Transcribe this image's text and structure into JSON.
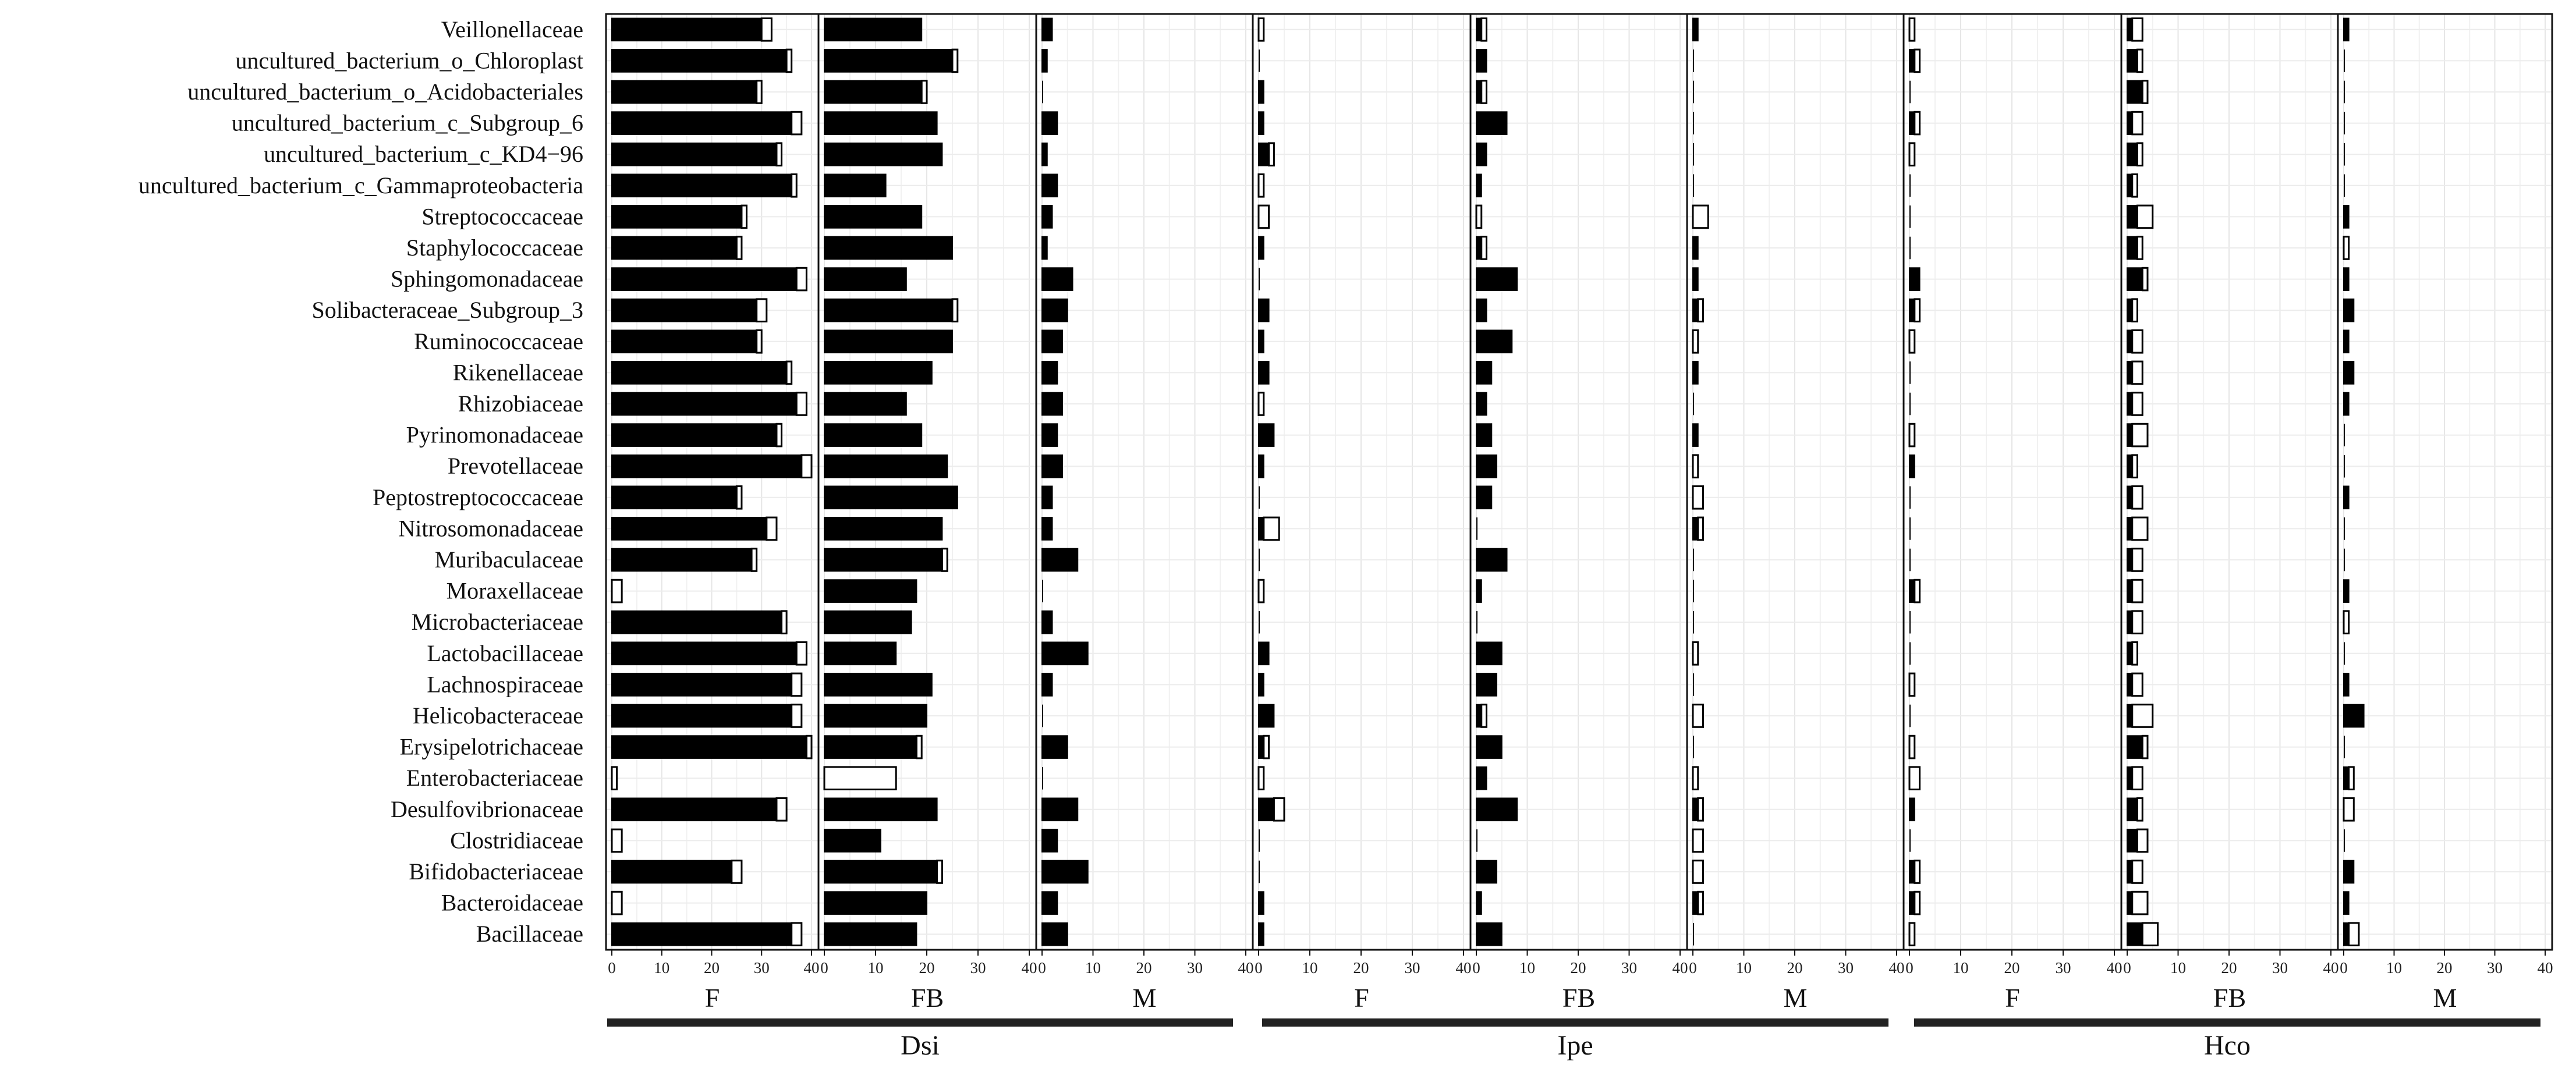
{
  "chart_data": {
    "type": "bar",
    "orientation": "horizontal",
    "stacked": true,
    "xlim": [
      0,
      40
    ],
    "x_ticks": [
      0,
      10,
      20,
      30,
      40
    ],
    "grid": true,
    "groups": [
      "Dsi",
      "Ipe",
      "Hco"
    ],
    "facets": [
      "F",
      "FB",
      "M"
    ],
    "series_colors": {
      "solid": "#000000",
      "open": "#ffffff"
    },
    "categories": [
      "Veillonellaceae",
      "uncultured_bacterium_o_Chloroplast",
      "uncultured_bacterium_o_Acidobacteriales",
      "uncultured_bacterium_c_Subgroup_6",
      "uncultured_bacterium_c_KD4−96",
      "uncultured_bacterium_c_Gammaproteobacteria",
      "Streptococcaceae",
      "Staphylococcaceae",
      "Sphingomonadaceae",
      "Solibacteraceae_Subgroup_3",
      "Ruminococcaceae",
      "Rikenellaceae",
      "Rhizobiaceae",
      "Pyrinomonadaceae",
      "Prevotellaceae",
      "Peptostreptococcaceae",
      "Nitrosomonadaceae",
      "Muribaculaceae",
      "Moraxellaceae",
      "Microbacteriaceae",
      "Lactobacillaceae",
      "Lachnospiraceae",
      "Helicobacteraceae",
      "Erysipelotrichaceae",
      "Enterobacteriaceae",
      "Desulfovibrionaceae",
      "Clostridiaceae",
      "Bifidobacteriaceae",
      "Bacteroidaceae",
      "Bacillaceae"
    ],
    "panels": [
      {
        "group": "Dsi",
        "facet": "F",
        "solid": [
          30,
          35,
          29,
          36,
          33,
          36,
          26,
          25,
          37,
          29,
          29,
          35,
          37,
          33,
          38,
          25,
          31,
          28,
          0,
          34,
          37,
          36,
          36,
          39,
          0,
          33,
          0,
          24,
          0,
          36
        ],
        "open": [
          2,
          1,
          1,
          2,
          1,
          1,
          1,
          1,
          2,
          2,
          1,
          1,
          2,
          1,
          2,
          1,
          2,
          1,
          2,
          1,
          2,
          2,
          2,
          1,
          1,
          2,
          2,
          2,
          2,
          2
        ]
      },
      {
        "group": "Dsi",
        "facet": "FB",
        "solid": [
          19,
          25,
          19,
          22,
          23,
          12,
          19,
          25,
          16,
          25,
          25,
          21,
          16,
          19,
          24,
          26,
          23,
          23,
          18,
          17,
          14,
          21,
          20,
          18,
          0,
          22,
          11,
          22,
          20,
          18
        ],
        "open": [
          0,
          1,
          1,
          0,
          0,
          0,
          0,
          0,
          0,
          1,
          0,
          0,
          0,
          0,
          0,
          0,
          0,
          1,
          0,
          0,
          0,
          0,
          0,
          1,
          14,
          0,
          0,
          1,
          0,
          0
        ]
      },
      {
        "group": "Dsi",
        "facet": "M",
        "solid": [
          2,
          1,
          0,
          3,
          1,
          3,
          2,
          1,
          6,
          5,
          4,
          3,
          4,
          3,
          4,
          2,
          2,
          7,
          0,
          2,
          9,
          2,
          0,
          5,
          0,
          7,
          3,
          9,
          3,
          5
        ],
        "open": [
          0,
          0,
          0,
          0,
          0,
          0,
          0,
          0,
          0,
          0,
          0,
          0,
          0,
          0,
          0,
          0,
          0,
          0,
          0,
          0,
          0,
          0,
          0,
          0,
          0,
          0,
          0,
          0,
          0,
          0
        ]
      },
      {
        "group": "Ipe",
        "facet": "F",
        "solid": [
          0,
          0,
          1,
          1,
          2,
          0,
          0,
          1,
          0,
          2,
          1,
          2,
          0,
          3,
          1,
          0,
          1,
          0,
          0,
          0,
          2,
          1,
          3,
          1,
          0,
          3,
          0,
          0,
          1,
          1
        ],
        "open": [
          1,
          0,
          0,
          0,
          1,
          1,
          2,
          0,
          0,
          0,
          0,
          0,
          1,
          0,
          0,
          0,
          3,
          0,
          1,
          0,
          0,
          0,
          0,
          1,
          1,
          2,
          0,
          0,
          0,
          0
        ]
      },
      {
        "group": "Ipe",
        "facet": "FB",
        "solid": [
          1,
          2,
          1,
          6,
          2,
          1,
          0,
          1,
          8,
          2,
          7,
          3,
          2,
          3,
          4,
          3,
          0,
          6,
          1,
          0,
          5,
          4,
          1,
          5,
          2,
          8,
          0,
          4,
          1,
          5
        ],
        "open": [
          1,
          0,
          1,
          0,
          0,
          0,
          1,
          1,
          0,
          0,
          0,
          0,
          0,
          0,
          0,
          0,
          0,
          0,
          0,
          0,
          0,
          0,
          1,
          0,
          0,
          0,
          0,
          0,
          0,
          0
        ]
      },
      {
        "group": "Ipe",
        "facet": "M",
        "solid": [
          1,
          0,
          0,
          0,
          0,
          0,
          0,
          1,
          1,
          1,
          0,
          1,
          0,
          1,
          0,
          0,
          1,
          0,
          0,
          0,
          0,
          0,
          0,
          0,
          0,
          1,
          0,
          0,
          1,
          0
        ],
        "open": [
          0,
          0,
          0,
          0,
          0,
          0,
          3,
          0,
          0,
          1,
          1,
          0,
          0,
          0,
          1,
          2,
          1,
          0,
          0,
          0,
          1,
          0,
          2,
          0,
          1,
          1,
          2,
          2,
          1,
          0
        ]
      },
      {
        "group": "Hco",
        "facet": "F",
        "solid": [
          0,
          1,
          0,
          1,
          0,
          0,
          0,
          0,
          2,
          1,
          0,
          0,
          0,
          0,
          1,
          0,
          0,
          0,
          1,
          0,
          0,
          0,
          0,
          0,
          0,
          1,
          0,
          1,
          1,
          0
        ],
        "open": [
          1,
          1,
          0,
          1,
          1,
          0,
          0,
          0,
          0,
          1,
          1,
          0,
          0,
          1,
          0,
          0,
          0,
          0,
          1,
          0,
          0,
          1,
          0,
          1,
          2,
          0,
          0,
          1,
          1,
          1
        ]
      },
      {
        "group": "Hco",
        "facet": "FB",
        "solid": [
          1,
          2,
          3,
          1,
          2,
          1,
          2,
          2,
          3,
          1,
          1,
          1,
          1,
          1,
          1,
          1,
          1,
          1,
          1,
          1,
          1,
          1,
          1,
          3,
          1,
          2,
          2,
          1,
          1,
          3
        ],
        "open": [
          2,
          1,
          1,
          2,
          1,
          1,
          3,
          1,
          1,
          1,
          2,
          2,
          2,
          3,
          1,
          2,
          3,
          2,
          2,
          2,
          1,
          2,
          4,
          1,
          2,
          1,
          2,
          2,
          3,
          3
        ]
      },
      {
        "group": "Hco",
        "facet": "M",
        "solid": [
          1,
          0,
          0,
          0,
          0,
          0,
          1,
          0,
          1,
          2,
          1,
          2,
          1,
          0,
          0,
          1,
          0,
          0,
          1,
          0,
          0,
          1,
          4,
          0,
          1,
          0,
          0,
          2,
          1,
          1
        ],
        "open": [
          0,
          0,
          0,
          0,
          0,
          0,
          0,
          1,
          0,
          0,
          0,
          0,
          0,
          0,
          0,
          0,
          0,
          0,
          0,
          1,
          0,
          0,
          0,
          0,
          1,
          2,
          0,
          0,
          0,
          2
        ]
      }
    ]
  }
}
